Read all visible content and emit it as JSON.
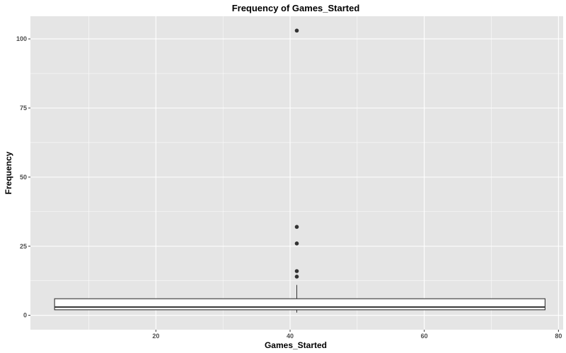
{
  "chart_data": {
    "type": "boxplot",
    "title": "Frequency of Games_Started",
    "xlabel": "Games_Started",
    "ylabel": "Frequency",
    "xlim": [
      1.3,
      80.7
    ],
    "ylim": [
      -5.2,
      108.2
    ],
    "x_ticks": [
      20,
      40,
      60,
      80
    ],
    "x_tick_labels": [
      "20",
      "40",
      "60",
      "80"
    ],
    "y_ticks": [
      0,
      25,
      50,
      75,
      100
    ],
    "y_tick_labels": [
      "0",
      "25",
      "50",
      "75",
      "100"
    ],
    "grid": true,
    "box": {
      "x_center": 41,
      "x_range": [
        4.9,
        78
      ],
      "lower_whisker": 1,
      "q1": 2,
      "median": 3,
      "q3": 6,
      "upper_whisker": 11,
      "outliers": [
        14,
        16,
        26,
        32,
        103
      ]
    },
    "colors": {
      "panel_background": "#e5e5e5",
      "grid": "#ffffff",
      "box_fill": "#ffffff",
      "box_stroke": "#333333",
      "outlier": "#333333"
    }
  }
}
